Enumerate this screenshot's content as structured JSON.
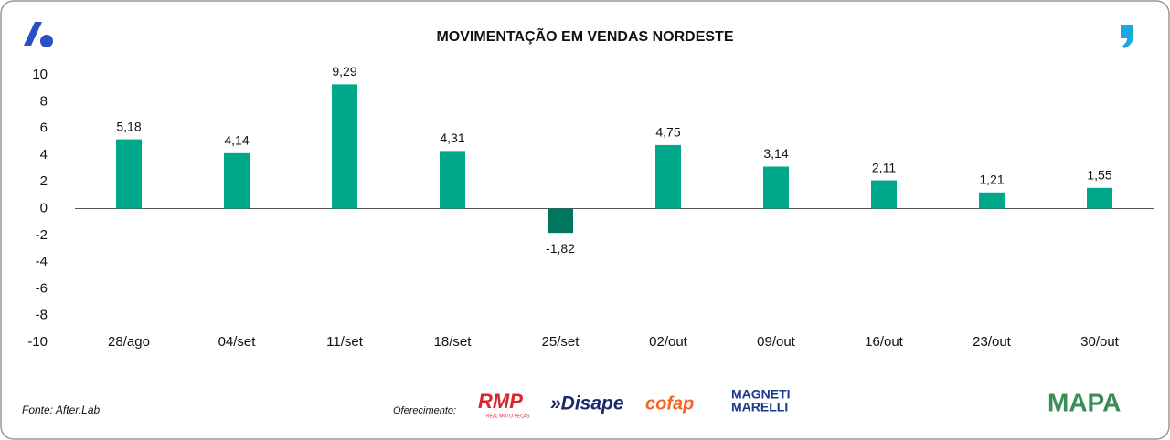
{
  "chart_data": {
    "type": "bar",
    "title": "MOVIMENTAÇÃO EM VENDAS NORDESTE",
    "categories": [
      "28/ago",
      "04/set",
      "11/set",
      "18/set",
      "25/set",
      "02/out",
      "09/out",
      "16/out",
      "23/out",
      "30/out"
    ],
    "values": [
      5.18,
      4.14,
      9.29,
      4.31,
      -1.82,
      4.75,
      3.14,
      2.11,
      1.21,
      1.55
    ],
    "value_labels": [
      "5,18",
      "4,14",
      "9,29",
      "4,31",
      "-1,82",
      "4,75",
      "3,14",
      "2,11",
      "1,21",
      "1,55"
    ],
    "color": "#00a88a",
    "negative_color": "#00765f",
    "ylim": [
      -10,
      10
    ],
    "yticks": [
      -10,
      -8,
      -6,
      -4,
      -2,
      0,
      2,
      4,
      6,
      8,
      10
    ],
    "grid": false
  },
  "footer": {
    "source": "Fonte: After.Lab",
    "sponsor_label": "Oferecimento:",
    "sponsors": [
      "RMP",
      "REAL MOTO PEÇAS",
      "»Disape",
      "cofap",
      "MAGNETI",
      "MARELLI"
    ],
    "brand": "MAPA"
  }
}
